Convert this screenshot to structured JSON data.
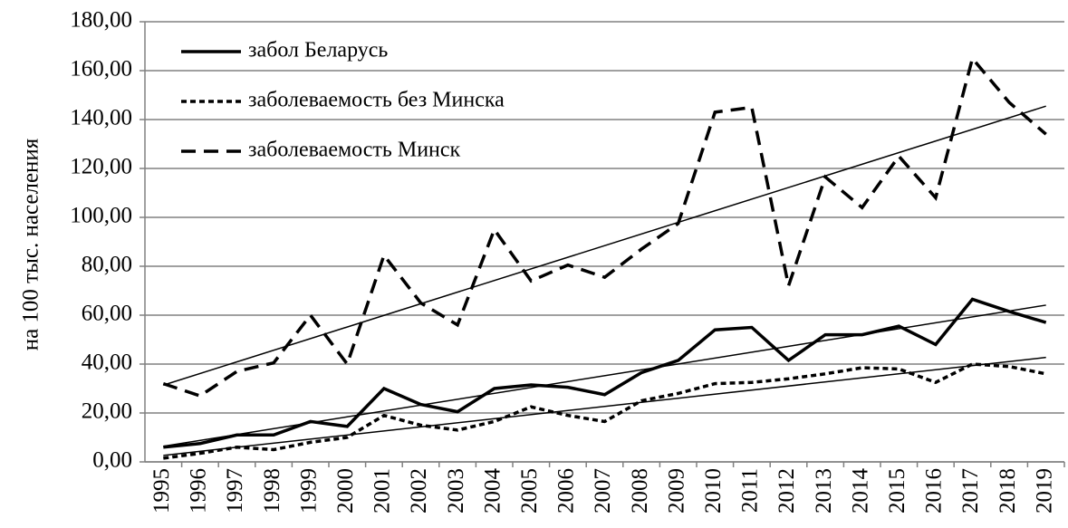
{
  "chart_data": {
    "type": "line",
    "y_label": "на 100 тыс. населения",
    "categories": [
      "1995",
      "1996",
      "1997",
      "1998",
      "1999",
      "2000",
      "2001",
      "2002",
      "2003",
      "2004",
      "2005",
      "2006",
      "2007",
      "2008",
      "2009",
      "2010",
      "2011",
      "2012",
      "2013",
      "2014",
      "2015",
      "2016",
      "2017",
      "2018",
      "2019"
    ],
    "series": [
      {
        "name": "забол Беларусь",
        "color": "#000000",
        "dash": "solid",
        "values": [
          6,
          7.5,
          11,
          11,
          16.5,
          14.5,
          30,
          23.5,
          20.5,
          30,
          31.5,
          30.5,
          27.5,
          36.5,
          41.5,
          54,
          55,
          41.5,
          52,
          52,
          55.5,
          48,
          66.5,
          61.5,
          57
        ]
      },
      {
        "name": "заболеваемость без Минска",
        "color": "#000000",
        "dash": "dotted",
        "values": [
          1.5,
          3.5,
          6,
          5,
          8,
          10,
          19,
          15,
          13,
          16.5,
          22.5,
          19,
          16.5,
          25,
          28,
          32,
          32.5,
          34,
          36,
          38.5,
          38,
          32.5,
          40,
          39,
          36
        ]
      },
      {
        "name": "заболеваемость Минск",
        "color": "#000000",
        "dash": "dashed",
        "values": [
          32,
          27,
          37,
          40.5,
          60,
          40,
          84.5,
          65,
          56,
          95,
          74,
          80.5,
          75.5,
          87,
          97.5,
          143,
          145,
          72,
          116.5,
          104,
          125,
          108,
          165,
          147,
          134
        ]
      }
    ],
    "ylim": [
      0,
      180
    ],
    "yticks": [
      {
        "value": 0,
        "label": "0,00"
      },
      {
        "value": 20,
        "label": "20,00"
      },
      {
        "value": 40,
        "label": "40,00"
      },
      {
        "value": 60,
        "label": "60,00"
      },
      {
        "value": 80,
        "label": "80,00"
      },
      {
        "value": 100,
        "label": "100,00"
      },
      {
        "value": 120,
        "label": "120,00"
      },
      {
        "value": 140,
        "label": "140,00"
      },
      {
        "value": 160,
        "label": "160,00"
      },
      {
        "value": 180,
        "label": "180,00"
      }
    ],
    "grid": true,
    "trendline": true,
    "legend": "upper-left"
  }
}
